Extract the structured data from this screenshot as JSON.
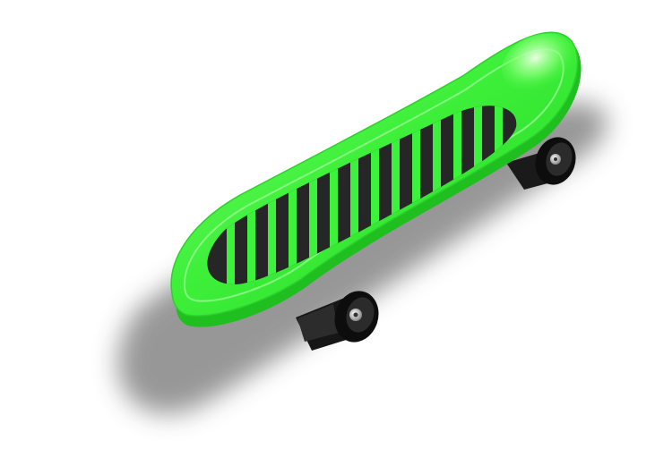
{
  "illustration": {
    "subject": "skateboard",
    "colors": {
      "background": "#ffffff",
      "deck_light": "#9dff8f",
      "deck_main": "#33ee33",
      "deck_dark": "#1fcc1f",
      "grip": "#2a2a2a",
      "stripe": "#3cf23c",
      "wheel": "#111111",
      "hub": "#dcdcdc",
      "shadow": "#8c8c8c"
    },
    "icons": [
      "skateboard-deck",
      "grip-tape",
      "front-wheel",
      "rear-wheel",
      "shadow"
    ]
  }
}
